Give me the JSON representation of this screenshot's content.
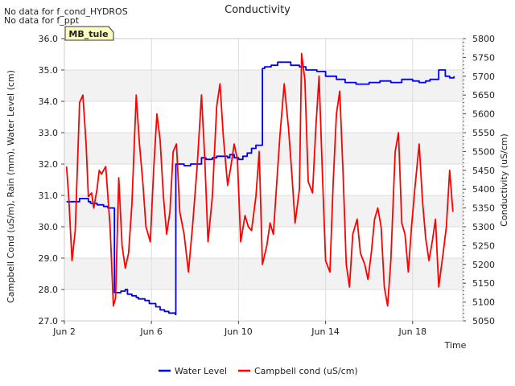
{
  "notices": [
    "No data for f_cond_HYDROS",
    "No data for f_ppt"
  ],
  "site_tag": "MB_tule",
  "chart_data": {
    "type": "line",
    "title": "Conductivity",
    "xlabel": "Time",
    "ylabel_left": "Campbell Cond (uS/m), Rain (mm), Water Level (cm)",
    "ylabel_right": "Conductivity (uS/cm)",
    "x_unit": "days since Jun 1",
    "xlim": [
      2.0,
      20.3
    ],
    "x_ticks": [
      {
        "label": "Jun 2",
        "x": 2
      },
      {
        "label": "Jun 6",
        "x": 6
      },
      {
        "label": "Jun 10",
        "x": 10
      },
      {
        "label": "Jun 14",
        "x": 14
      },
      {
        "label": "Jun 18",
        "x": 18
      }
    ],
    "ylim_left": [
      27.0,
      36.0
    ],
    "y_ticks_left": [
      "27.0",
      "28.0",
      "29.0",
      "30.0",
      "31.0",
      "32.0",
      "33.0",
      "34.0",
      "35.0",
      "36.0"
    ],
    "ylim_right": [
      5050,
      5800
    ],
    "y_ticks_right": [
      "5050",
      "5100",
      "5150",
      "5200",
      "5250",
      "5300",
      "5350",
      "5400",
      "5450",
      "5500",
      "5550",
      "5600",
      "5650",
      "5700",
      "5750",
      "5800"
    ],
    "grid": true,
    "band_shading": true,
    "legend_position": "bottom-center",
    "series": [
      {
        "name": "Water Level",
        "axis": "left",
        "color": "#0000ee",
        "x": [
          2.1,
          2.6,
          2.7,
          3.1,
          3.2,
          3.5,
          3.8,
          4.0,
          4.3,
          4.6,
          4.8,
          4.9,
          5.1,
          5.3,
          5.4,
          5.7,
          5.9,
          6.2,
          6.4,
          6.6,
          6.8,
          7.1,
          7.12,
          7.2,
          7.5,
          7.8,
          8.3,
          8.5,
          8.8,
          9.0,
          9.5,
          9.6,
          9.8,
          10.0,
          10.2,
          10.4,
          10.6,
          10.8,
          11.1,
          11.2,
          11.5,
          11.8,
          12.0,
          12.4,
          12.8,
          13.1,
          13.6,
          14.0,
          14.5,
          14.9,
          15.4,
          16.0,
          16.5,
          17.0,
          17.5,
          18.0,
          18.3,
          18.6,
          18.8,
          19.2,
          19.5,
          19.7,
          19.9
        ],
        "y": [
          30.8,
          30.8,
          30.9,
          30.8,
          30.75,
          30.7,
          30.65,
          30.6,
          27.9,
          27.95,
          28.0,
          27.85,
          27.8,
          27.75,
          27.7,
          27.65,
          27.55,
          27.45,
          27.35,
          27.3,
          27.25,
          27.2,
          32.0,
          32.0,
          31.95,
          32.0,
          32.2,
          32.15,
          32.2,
          32.25,
          32.2,
          32.3,
          32.2,
          32.15,
          32.25,
          32.35,
          32.5,
          32.6,
          35.05,
          35.1,
          35.15,
          35.25,
          35.25,
          35.15,
          35.1,
          35.0,
          34.95,
          34.8,
          34.7,
          34.6,
          34.55,
          34.6,
          34.65,
          34.6,
          34.7,
          34.65,
          34.6,
          34.65,
          34.7,
          35.0,
          34.8,
          34.75,
          34.8
        ]
      },
      {
        "name": "Campbell cond (uS/cm)",
        "axis": "right",
        "color": "#ff0000",
        "x": [
          2.1,
          2.2,
          2.35,
          2.5,
          2.7,
          2.85,
          3.0,
          3.1,
          3.25,
          3.35,
          3.5,
          3.6,
          3.7,
          3.9,
          4.1,
          4.25,
          4.35,
          4.5,
          4.65,
          4.8,
          4.95,
          5.1,
          5.3,
          5.45,
          5.6,
          5.75,
          5.95,
          6.1,
          6.25,
          6.4,
          6.55,
          6.7,
          6.85,
          7.0,
          7.15,
          7.3,
          7.5,
          7.7,
          7.9,
          8.1,
          8.3,
          8.45,
          8.6,
          8.8,
          9.0,
          9.15,
          9.3,
          9.5,
          9.65,
          9.8,
          9.95,
          10.1,
          10.3,
          10.45,
          10.6,
          10.8,
          10.95,
          11.1,
          11.3,
          11.45,
          11.6,
          11.75,
          11.9,
          12.1,
          12.3,
          12.45,
          12.6,
          12.8,
          12.9,
          13.05,
          13.2,
          13.4,
          13.55,
          13.7,
          13.85,
          14.0,
          14.2,
          14.35,
          14.5,
          14.65,
          14.8,
          14.95,
          15.1,
          15.25,
          15.45,
          15.6,
          15.8,
          15.95,
          16.1,
          16.25,
          16.4,
          16.55,
          16.7,
          16.85,
          17.0,
          17.2,
          17.35,
          17.5,
          17.65,
          17.8,
          17.95,
          18.1,
          18.3,
          18.45,
          18.6,
          18.75,
          18.9,
          19.05,
          19.2,
          19.4,
          19.55,
          19.7,
          19.85
        ],
        "y": [
          5460,
          5380,
          5210,
          5290,
          5630,
          5650,
          5520,
          5380,
          5390,
          5350,
          5400,
          5450,
          5440,
          5460,
          5300,
          5090,
          5110,
          5430,
          5250,
          5190,
          5230,
          5360,
          5650,
          5520,
          5420,
          5300,
          5260,
          5450,
          5600,
          5530,
          5380,
          5280,
          5340,
          5500,
          5520,
          5340,
          5280,
          5180,
          5310,
          5460,
          5650,
          5480,
          5260,
          5380,
          5620,
          5680,
          5540,
          5410,
          5460,
          5520,
          5480,
          5260,
          5330,
          5300,
          5290,
          5380,
          5500,
          5200,
          5250,
          5310,
          5280,
          5410,
          5540,
          5680,
          5560,
          5440,
          5310,
          5400,
          5760,
          5690,
          5420,
          5390,
          5560,
          5700,
          5450,
          5210,
          5180,
          5420,
          5600,
          5660,
          5450,
          5200,
          5140,
          5280,
          5320,
          5230,
          5200,
          5160,
          5230,
          5320,
          5350,
          5300,
          5140,
          5090,
          5210,
          5500,
          5550,
          5310,
          5280,
          5180,
          5300,
          5400,
          5520,
          5370,
          5270,
          5210,
          5260,
          5320,
          5140,
          5230,
          5300,
          5450,
          5340
        ]
      }
    ]
  }
}
